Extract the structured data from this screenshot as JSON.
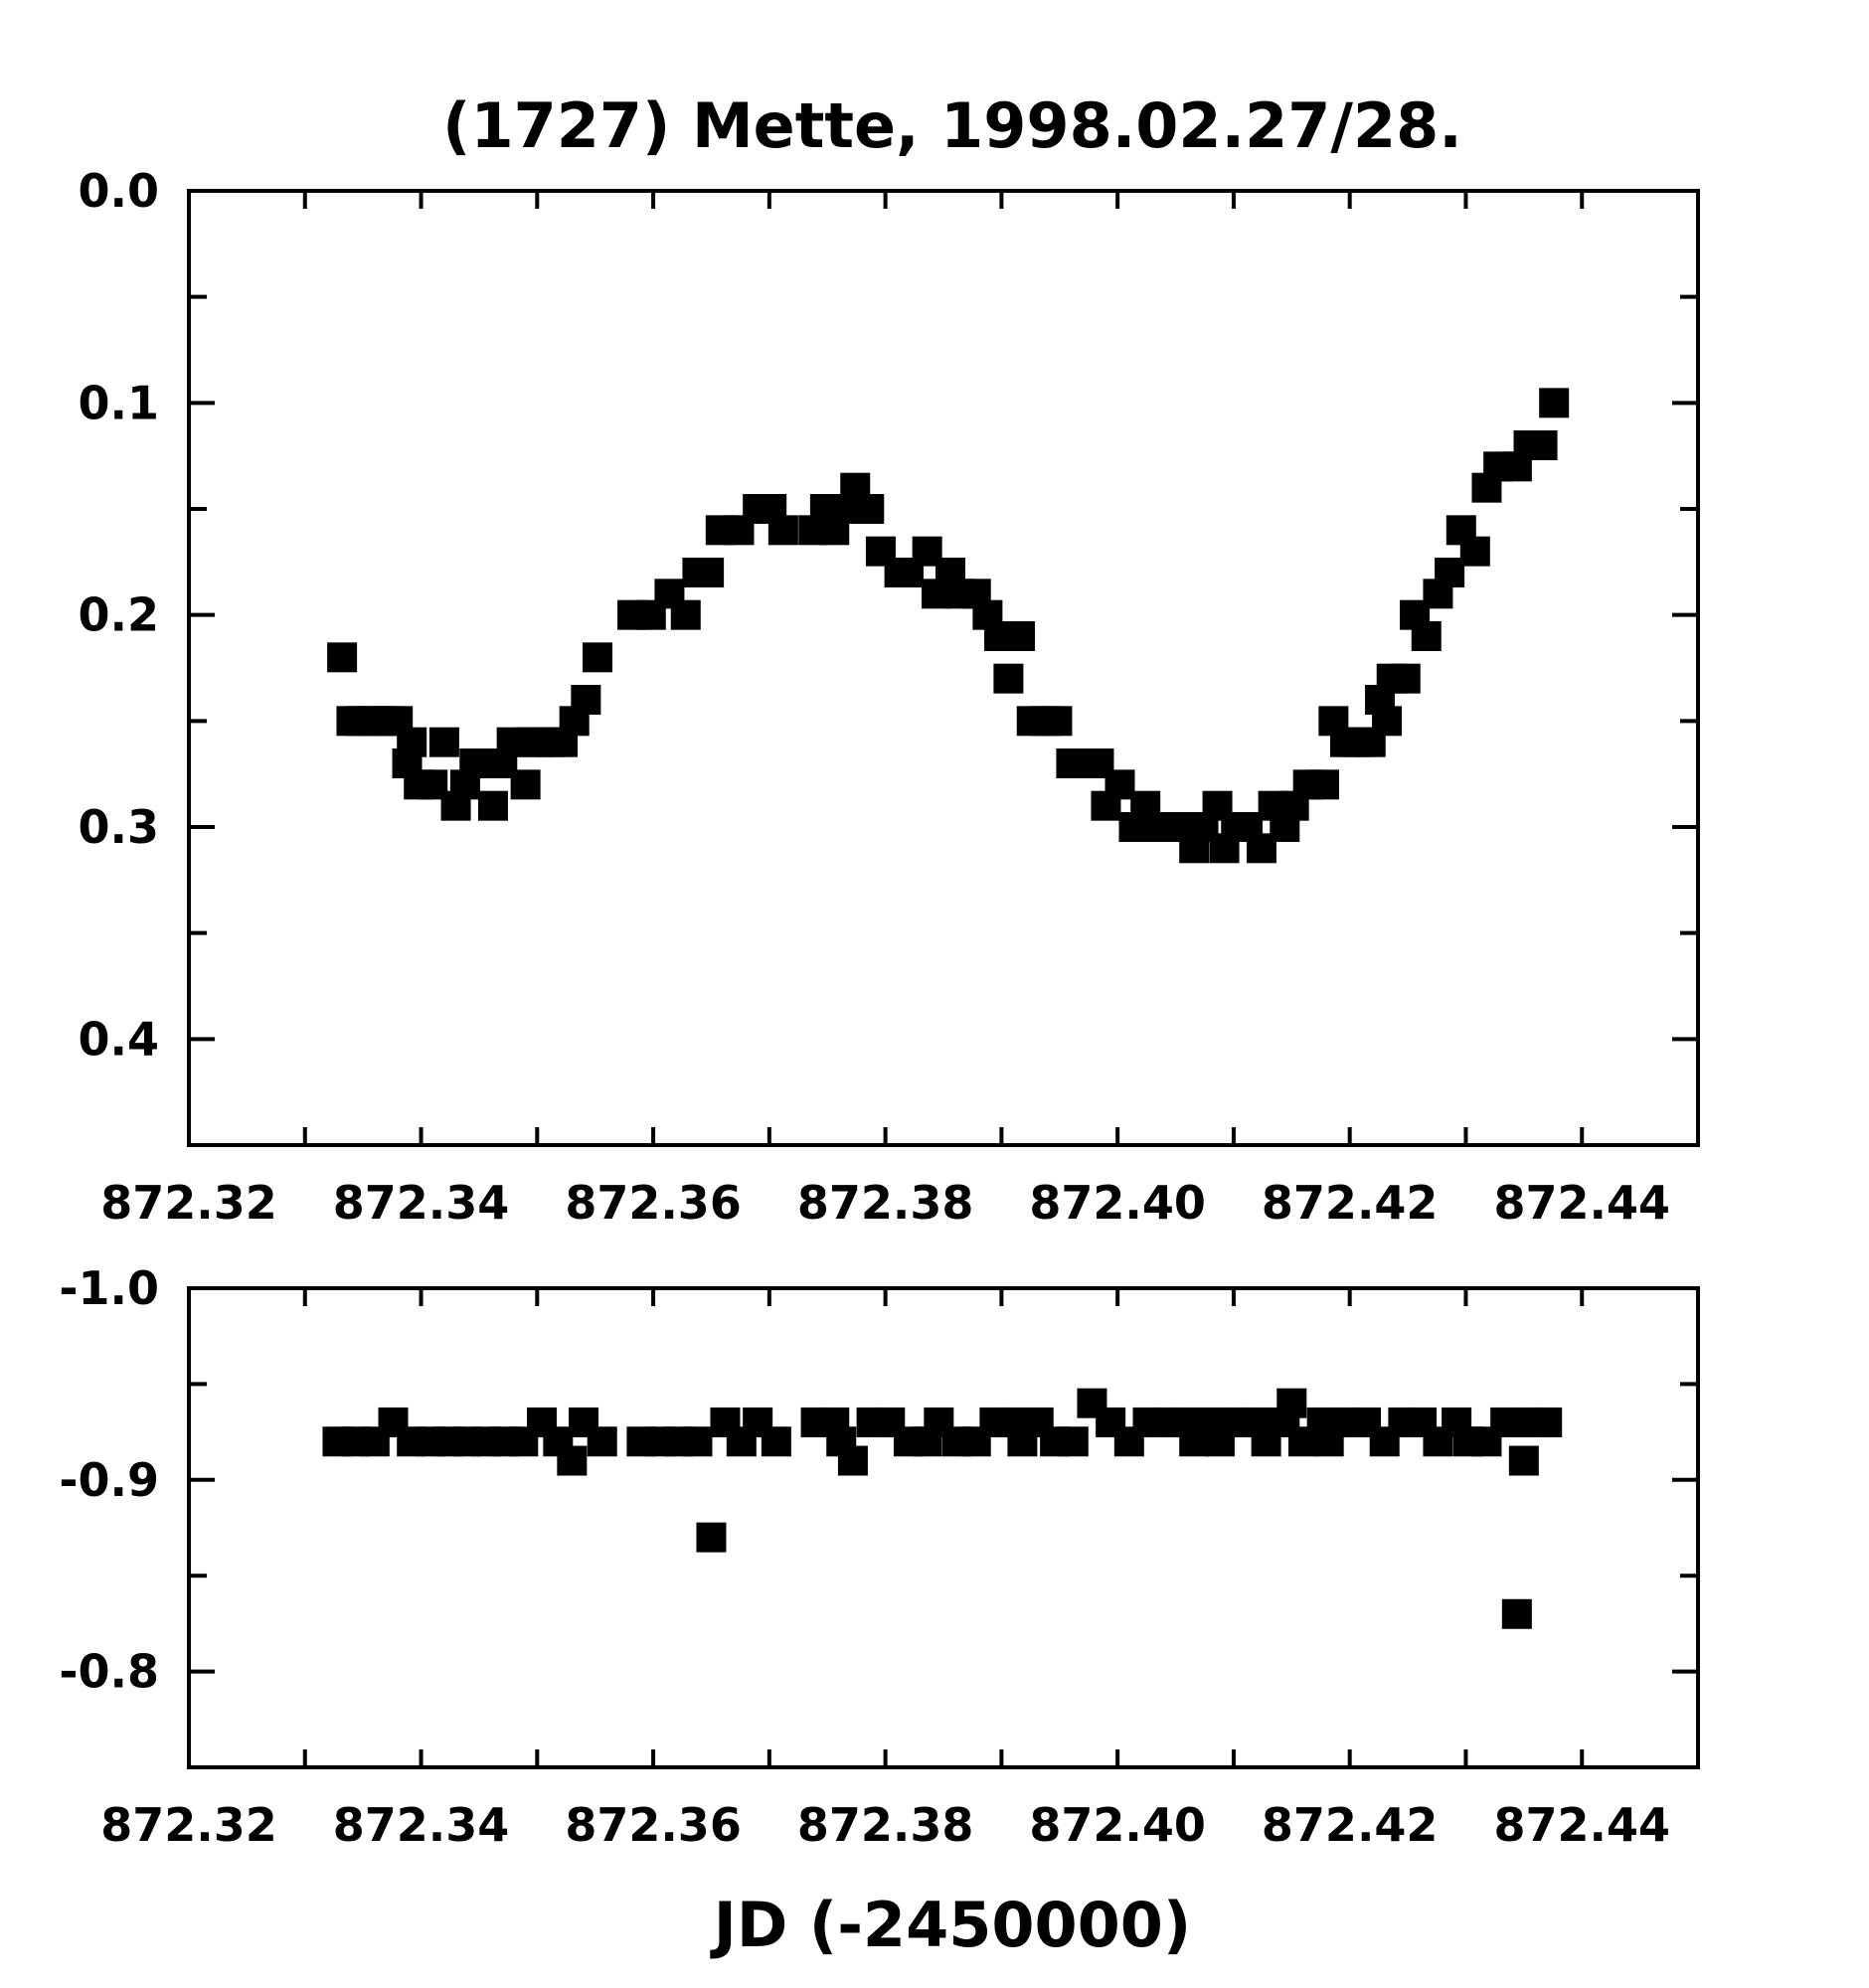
{
  "chart_data": [
    {
      "type": "scatter",
      "title": "(1727) Mette, 1998.02.27/28.",
      "xlabel": "",
      "ylabel": "",
      "xlim": [
        872.32,
        872.45
      ],
      "ylim": [
        0.0,
        0.45
      ],
      "y_inverted": true,
      "x_ticks": [
        872.32,
        872.34,
        872.36,
        872.38,
        872.4,
        872.42,
        872.44
      ],
      "x_tick_labels": [
        "872.32",
        "872.34",
        "872.36",
        "872.38",
        "872.40",
        "872.42",
        "872.44"
      ],
      "y_ticks": [
        0.0,
        0.1,
        0.2,
        0.3,
        0.4
      ],
      "y_tick_labels": [
        "0.0",
        "0.1",
        "0.2",
        "0.3",
        "0.4"
      ],
      "grid": false,
      "marker": "square",
      "color": "#000000",
      "points": [
        [
          872.3332,
          0.22
        ],
        [
          872.334,
          0.25
        ],
        [
          872.3348,
          0.25
        ],
        [
          872.3356,
          0.25
        ],
        [
          872.3364,
          0.25
        ],
        [
          872.3372,
          0.25
        ],
        [
          872.338,
          0.25
        ],
        [
          872.3388,
          0.27
        ],
        [
          872.3392,
          0.26
        ],
        [
          872.3398,
          0.28
        ],
        [
          872.341,
          0.28
        ],
        [
          872.342,
          0.26
        ],
        [
          872.343,
          0.29
        ],
        [
          872.3438,
          0.28
        ],
        [
          872.3446,
          0.27
        ],
        [
          872.3456,
          0.27
        ],
        [
          872.3462,
          0.29
        ],
        [
          872.347,
          0.27
        ],
        [
          872.3478,
          0.26
        ],
        [
          872.349,
          0.28
        ],
        [
          872.3494,
          0.26
        ],
        [
          872.3502,
          0.26
        ],
        [
          872.3512,
          0.26
        ],
        [
          872.3522,
          0.26
        ],
        [
          872.3532,
          0.25
        ],
        [
          872.3542,
          0.24
        ],
        [
          872.3552,
          0.22
        ],
        [
          872.3582,
          0.2
        ],
        [
          872.3598,
          0.2
        ],
        [
          872.3614,
          0.19
        ],
        [
          872.3628,
          0.2
        ],
        [
          872.3638,
          0.18
        ],
        [
          872.3648,
          0.18
        ],
        [
          872.3658,
          0.16
        ],
        [
          872.3674,
          0.16
        ],
        [
          872.369,
          0.15
        ],
        [
          872.3702,
          0.15
        ],
        [
          872.3712,
          0.16
        ],
        [
          872.3738,
          0.16
        ],
        [
          872.3748,
          0.15
        ],
        [
          872.3756,
          0.16
        ],
        [
          872.3764,
          0.15
        ],
        [
          872.3774,
          0.14
        ],
        [
          872.3786,
          0.15
        ],
        [
          872.3796,
          0.17
        ],
        [
          872.3812,
          0.18
        ],
        [
          872.382,
          0.18
        ],
        [
          872.3836,
          0.17
        ],
        [
          872.3844,
          0.19
        ],
        [
          872.3856,
          0.18
        ],
        [
          872.3864,
          0.19
        ],
        [
          872.3878,
          0.19
        ],
        [
          872.3888,
          0.2
        ],
        [
          872.3898,
          0.21
        ],
        [
          872.3906,
          0.23
        ],
        [
          872.3916,
          0.21
        ],
        [
          872.3926,
          0.25
        ],
        [
          872.3938,
          0.25
        ],
        [
          872.3948,
          0.25
        ],
        [
          872.396,
          0.27
        ],
        [
          872.3972,
          0.27
        ],
        [
          872.3984,
          0.27
        ],
        [
          872.399,
          0.29
        ],
        [
          872.4002,
          0.28
        ],
        [
          872.4014,
          0.3
        ],
        [
          872.4024,
          0.29
        ],
        [
          872.4034,
          0.3
        ],
        [
          872.4044,
          0.3
        ],
        [
          872.4056,
          0.3
        ],
        [
          872.4066,
          0.31
        ],
        [
          872.4074,
          0.3
        ],
        [
          872.4086,
          0.29
        ],
        [
          872.4092,
          0.31
        ],
        [
          872.4102,
          0.3
        ],
        [
          872.4112,
          0.3
        ],
        [
          872.4124,
          0.31
        ],
        [
          872.4134,
          0.29
        ],
        [
          872.4144,
          0.3
        ],
        [
          872.4152,
          0.29
        ],
        [
          872.4164,
          0.28
        ],
        [
          872.4178,
          0.28
        ],
        [
          872.4186,
          0.25
        ],
        [
          872.4196,
          0.26
        ],
        [
          872.4206,
          0.26
        ],
        [
          872.4218,
          0.26
        ],
        [
          872.4226,
          0.24
        ],
        [
          872.4232,
          0.25
        ],
        [
          872.4236,
          0.23
        ],
        [
          872.4248,
          0.23
        ],
        [
          872.4256,
          0.2
        ],
        [
          872.4266,
          0.21
        ],
        [
          872.4276,
          0.19
        ],
        [
          872.4286,
          0.18
        ],
        [
          872.4296,
          0.16
        ],
        [
          872.4308,
          0.17
        ],
        [
          872.4318,
          0.14
        ],
        [
          872.4328,
          0.13
        ],
        [
          872.4344,
          0.13
        ],
        [
          872.4354,
          0.12
        ],
        [
          872.4366,
          0.12
        ],
        [
          872.4376,
          0.1
        ]
      ]
    },
    {
      "type": "scatter",
      "title": "",
      "xlabel": "JD (-2450000)",
      "ylabel": "",
      "xlim": [
        872.32,
        872.45
      ],
      "ylim": [
        -1.0,
        -0.75
      ],
      "y_inverted": false,
      "x_ticks": [
        872.32,
        872.34,
        872.36,
        872.38,
        872.4,
        872.42,
        872.44
      ],
      "x_tick_labels": [
        "872.32",
        "872.34",
        "872.36",
        "872.38",
        "872.40",
        "872.42",
        "872.44"
      ],
      "y_ticks": [
        -1.0,
        -0.9,
        -0.8
      ],
      "y_tick_labels": [
        "-1.0",
        "-0.9",
        "-0.8"
      ],
      "grid": false,
      "marker": "square",
      "color": "#000000",
      "points": [
        [
          872.3328,
          -0.92
        ],
        [
          872.3344,
          -0.92
        ],
        [
          872.336,
          -0.92
        ],
        [
          872.3376,
          -0.93
        ],
        [
          872.3392,
          -0.92
        ],
        [
          872.3408,
          -0.92
        ],
        [
          872.3424,
          -0.92
        ],
        [
          872.344,
          -0.92
        ],
        [
          872.3456,
          -0.92
        ],
        [
          872.3472,
          -0.92
        ],
        [
          872.3488,
          -0.92
        ],
        [
          872.3504,
          -0.93
        ],
        [
          872.3518,
          -0.92
        ],
        [
          872.353,
          -0.91
        ],
        [
          872.354,
          -0.93
        ],
        [
          872.3556,
          -0.92
        ],
        [
          872.359,
          -0.92
        ],
        [
          872.3606,
          -0.92
        ],
        [
          872.3622,
          -0.92
        ],
        [
          872.3638,
          -0.92
        ],
        [
          872.365,
          -0.87
        ],
        [
          872.3662,
          -0.93
        ],
        [
          872.3676,
          -0.92
        ],
        [
          872.369,
          -0.93
        ],
        [
          872.3706,
          -0.92
        ],
        [
          872.374,
          -0.93
        ],
        [
          872.3756,
          -0.93
        ],
        [
          872.3762,
          -0.92
        ],
        [
          872.3772,
          -0.91
        ],
        [
          872.3788,
          -0.93
        ],
        [
          872.3804,
          -0.93
        ],
        [
          872.382,
          -0.92
        ],
        [
          872.3836,
          -0.92
        ],
        [
          872.3846,
          -0.93
        ],
        [
          872.3862,
          -0.92
        ],
        [
          872.3878,
          -0.92
        ],
        [
          872.3894,
          -0.93
        ],
        [
          872.391,
          -0.93
        ],
        [
          872.3918,
          -0.92
        ],
        [
          872.3932,
          -0.93
        ],
        [
          872.3946,
          -0.92
        ],
        [
          872.3962,
          -0.92
        ],
        [
          872.3978,
          -0.94
        ],
        [
          872.3994,
          -0.93
        ],
        [
          872.401,
          -0.92
        ],
        [
          872.4026,
          -0.93
        ],
        [
          872.4042,
          -0.93
        ],
        [
          872.4058,
          -0.93
        ],
        [
          872.4066,
          -0.92
        ],
        [
          872.4082,
          -0.93
        ],
        [
          872.4088,
          -0.92
        ],
        [
          872.4104,
          -0.93
        ],
        [
          872.412,
          -0.93
        ],
        [
          872.4128,
          -0.92
        ],
        [
          872.4144,
          -0.93
        ],
        [
          872.415,
          -0.94
        ],
        [
          872.416,
          -0.92
        ],
        [
          872.4176,
          -0.93
        ],
        [
          872.4182,
          -0.92
        ],
        [
          872.4198,
          -0.93
        ],
        [
          872.4214,
          -0.93
        ],
        [
          872.423,
          -0.92
        ],
        [
          872.4246,
          -0.93
        ],
        [
          872.4262,
          -0.93
        ],
        [
          872.4276,
          -0.92
        ],
        [
          872.4292,
          -0.93
        ],
        [
          872.4302,
          -0.92
        ],
        [
          872.4318,
          -0.92
        ],
        [
          872.4334,
          -0.93
        ],
        [
          872.4344,
          -0.83
        ],
        [
          872.435,
          -0.91
        ],
        [
          872.4356,
          -0.93
        ],
        [
          872.437,
          -0.93
        ]
      ]
    }
  ]
}
